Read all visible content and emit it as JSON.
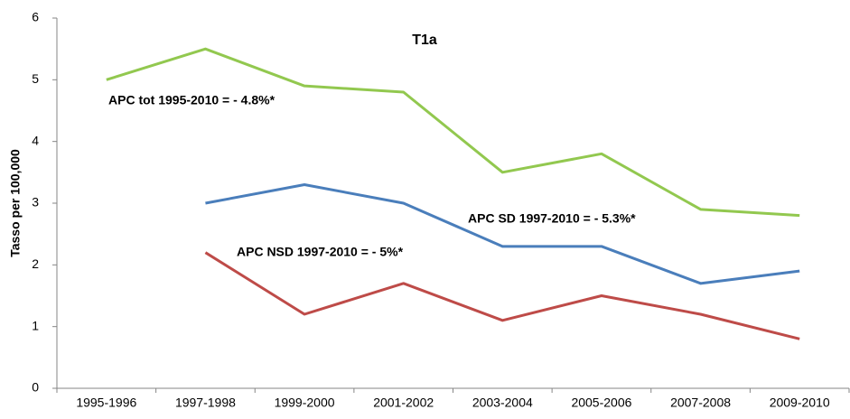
{
  "chart_data": {
    "type": "line",
    "title": "T1a",
    "y_label": "Tasso per 100,000",
    "categories": [
      "1995-1996",
      "1997-1998",
      "1999-2000",
      "2001-2002",
      "2003-2004",
      "2005-2006",
      "2007-2008",
      "2009-2010"
    ],
    "series": [
      {
        "color": "#92c84f",
        "values": [
          5.0,
          5.5,
          4.9,
          4.8,
          3.5,
          3.8,
          2.9,
          2.8
        ]
      },
      {
        "color": "#4a7ebb",
        "values": [
          null,
          3.0,
          3.3,
          3.0,
          2.3,
          2.3,
          1.7,
          1.9
        ]
      },
      {
        "color": "#be4b48",
        "values": [
          null,
          2.2,
          1.2,
          1.7,
          1.1,
          1.5,
          1.2,
          0.8
        ]
      }
    ],
    "annotations": [
      "APC tot 1995-2010 = - 4.8%*",
      "APC SD 1997-2010 = - 5.3%*",
      "APC NSD 1997-2010 = - 5%*"
    ],
    "ylim": [
      0,
      6
    ],
    "yticks": [
      0,
      1,
      2,
      3,
      4,
      5,
      6
    ],
    "grid": false
  }
}
